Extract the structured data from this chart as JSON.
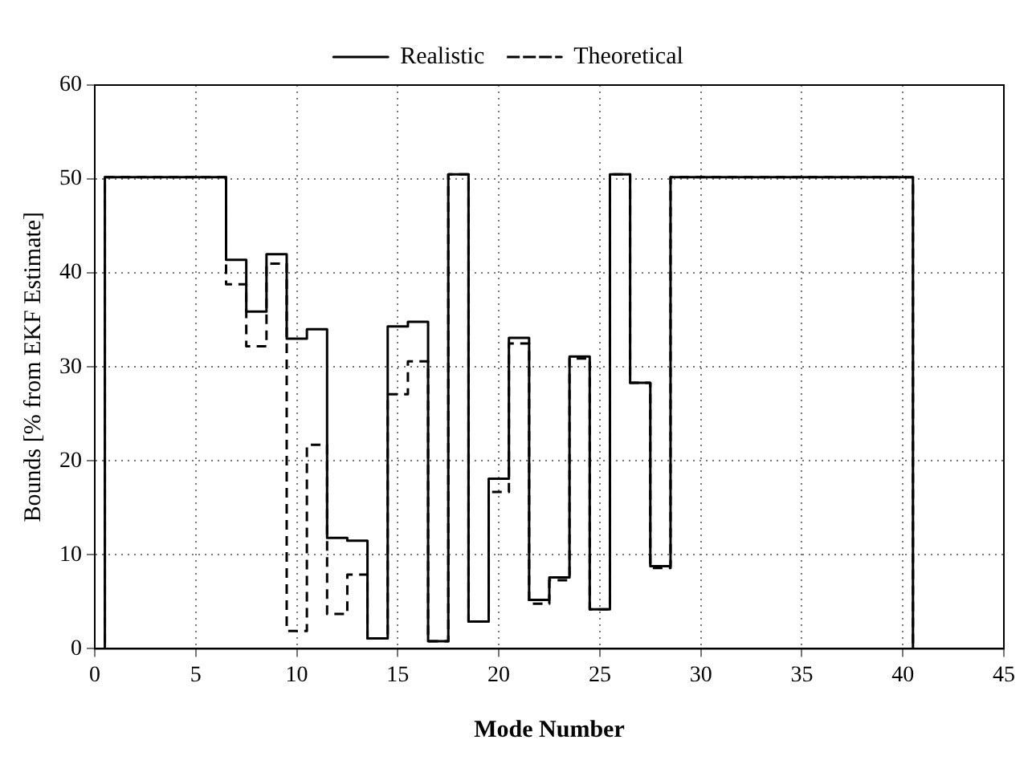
{
  "chart_data": {
    "type": "step",
    "xlabel": "Mode Number",
    "ylabel": "Bounds [% from EKF Estimate]",
    "xlim": [
      0,
      45
    ],
    "xticks": [
      0,
      5,
      10,
      15,
      20,
      25,
      30,
      35,
      40,
      45
    ],
    "ylim": [
      0,
      60
    ],
    "yticks": [
      0,
      10,
      20,
      30,
      40,
      50,
      60
    ],
    "grid": true,
    "legend": "top",
    "x": [
      0,
      0.5,
      6.5,
      7.5,
      8.5,
      9.5,
      10.5,
      11.5,
      12.5,
      13.5,
      14.5,
      15.5,
      16.5,
      17.5,
      18.5,
      19.5,
      20.5,
      21.5,
      22.5,
      23.5,
      24.5,
      25.5,
      26.5,
      27.5,
      28.5,
      40.5,
      45
    ],
    "series": [
      {
        "name": "Realistic",
        "color": "#000000",
        "line_style": "solid",
        "values": [
          0,
          50.2,
          41.4,
          35.9,
          42,
          33,
          34,
          11.8,
          11.5,
          1.1,
          34.3,
          34.8,
          0.8,
          50.5,
          2.9,
          18.1,
          33.1,
          5.2,
          7.6,
          31.1,
          4.2,
          50.5,
          28.3,
          8.8,
          50.2,
          0,
          0
        ]
      },
      {
        "name": "Theoretical",
        "color": "#000000",
        "line_style": "dashed",
        "values": [
          0,
          50.2,
          38.8,
          32.2,
          41,
          1.9,
          21.7,
          3.7,
          7.9,
          1.1,
          27.1,
          30.6,
          0.8,
          50.5,
          2.9,
          16.7,
          32.5,
          4.8,
          7.3,
          30.9,
          4.2,
          50.5,
          28.3,
          8.6,
          50.2,
          0,
          0
        ]
      }
    ]
  }
}
